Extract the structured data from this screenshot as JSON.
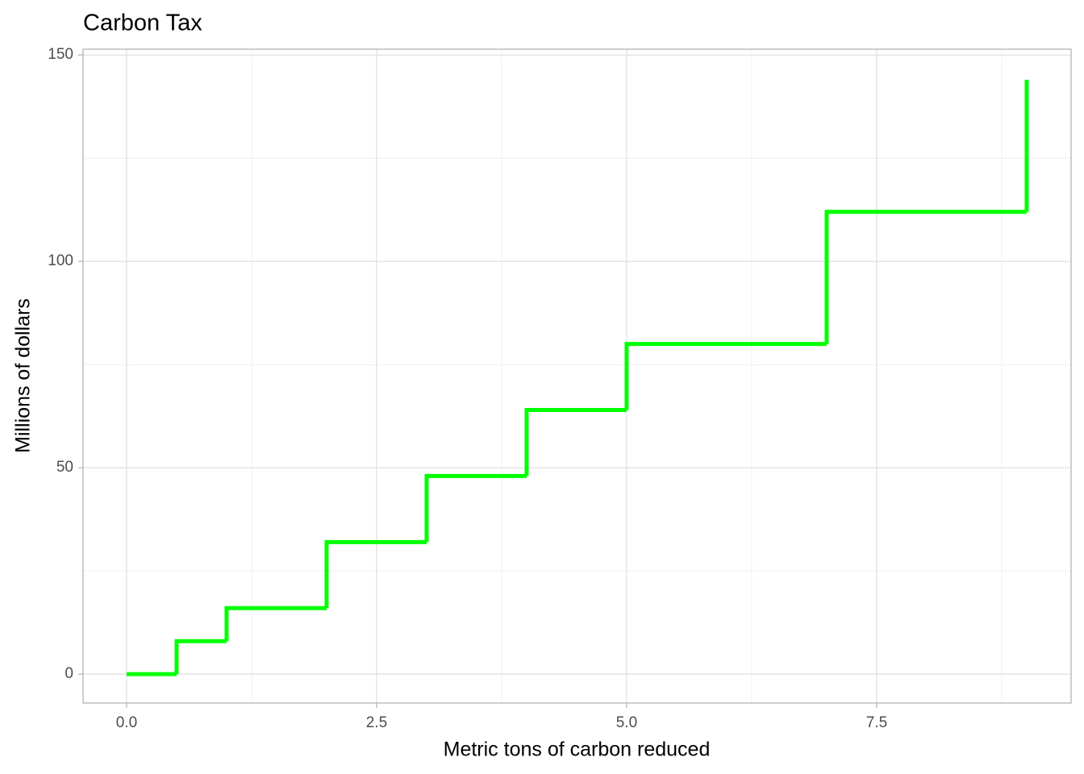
{
  "chart_data": {
    "type": "step",
    "title": "Carbon Tax",
    "x_label": "Metric tons of carbon reduced",
    "y_label": "Millions of dollars",
    "x": [
      0,
      0.5,
      1,
      2,
      3,
      4,
      5,
      7,
      9
    ],
    "series": [
      {
        "color": "#00ff00",
        "values": [
          0,
          8,
          16,
          32,
          48,
          64,
          80,
          112,
          144
        ]
      }
    ],
    "xlim": [
      -0.435,
      9.444
    ],
    "ylim": [
      -7,
      151.4
    ],
    "xticks": [
      {
        "value": 0,
        "label": "0.0"
      },
      2.5,
      {
        "value": 5,
        "label": "5.0"
      },
      7.5
    ],
    "yticks": [
      0,
      50,
      100,
      150
    ],
    "minor_xticks": [
      1.25,
      3.75,
      6.25,
      8.75
    ],
    "minor_yticks": [
      25,
      75,
      125
    ],
    "grid": true
  }
}
